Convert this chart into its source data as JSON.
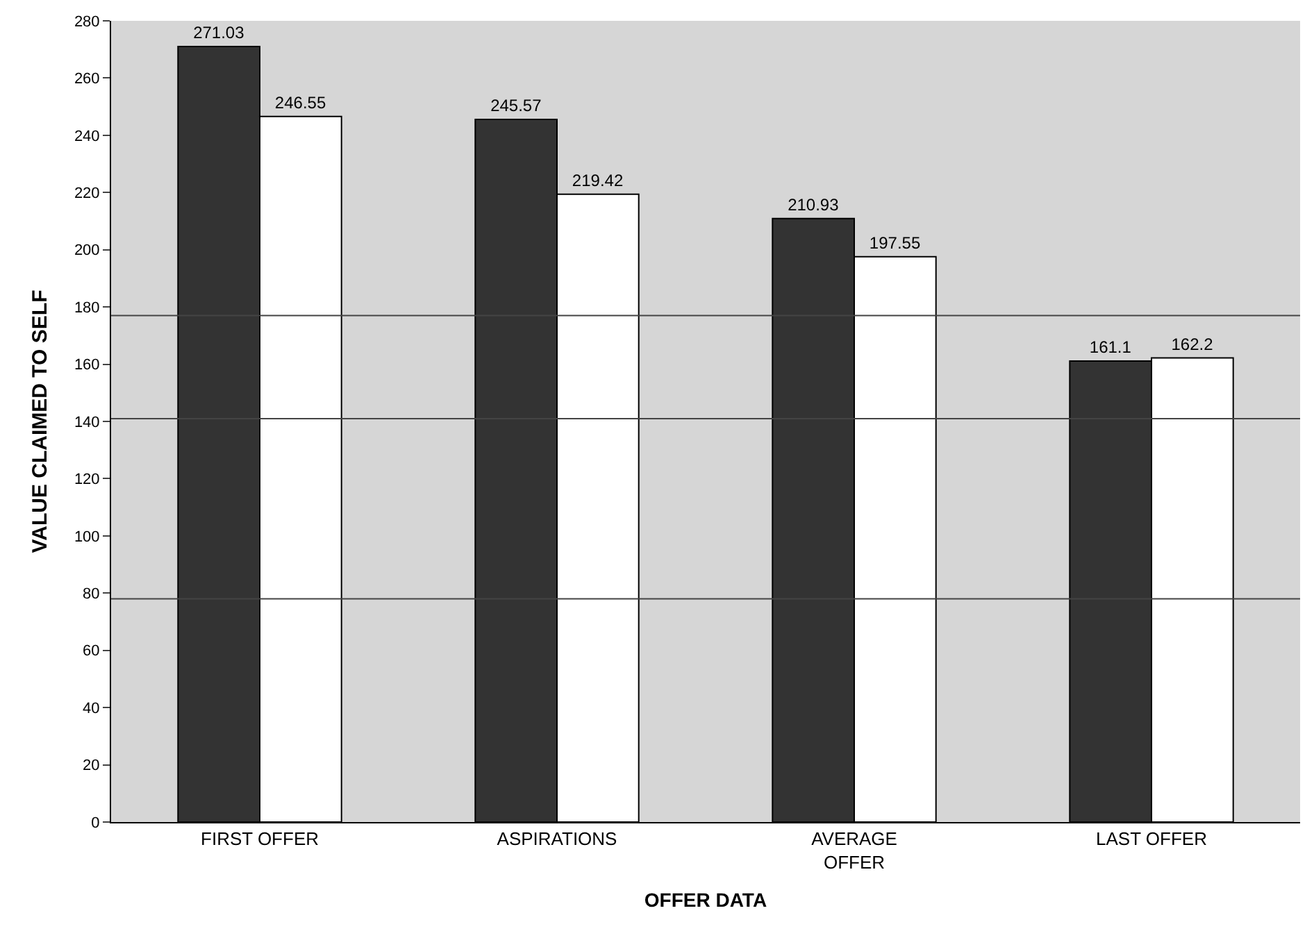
{
  "chart_data": {
    "type": "bar",
    "xlabel": "OFFER DATA",
    "ylabel": "VALUE CLAIMED TO SELF",
    "categories": [
      "FIRST OFFER",
      "ASPIRATIONS",
      "AVERAGE\nOFFER",
      "LAST OFFER"
    ],
    "series": [
      {
        "color": "#333333",
        "values": [
          271.03,
          245.57,
          210.93,
          161.1
        ]
      },
      {
        "color": "#ffffff",
        "values": [
          246.55,
          219.42,
          197.55,
          162.2
        ]
      }
    ],
    "ylim": [
      0,
      280
    ],
    "yticks": [
      0,
      20,
      40,
      60,
      80,
      100,
      120,
      140,
      160,
      180,
      200,
      220,
      240,
      260,
      280
    ],
    "data_labels": true,
    "grid": false,
    "ref_lines": [
      {
        "axis": "y",
        "value": 177
      },
      {
        "axis": "y",
        "value": 141
      },
      {
        "axis": "y",
        "value": 78
      }
    ]
  }
}
